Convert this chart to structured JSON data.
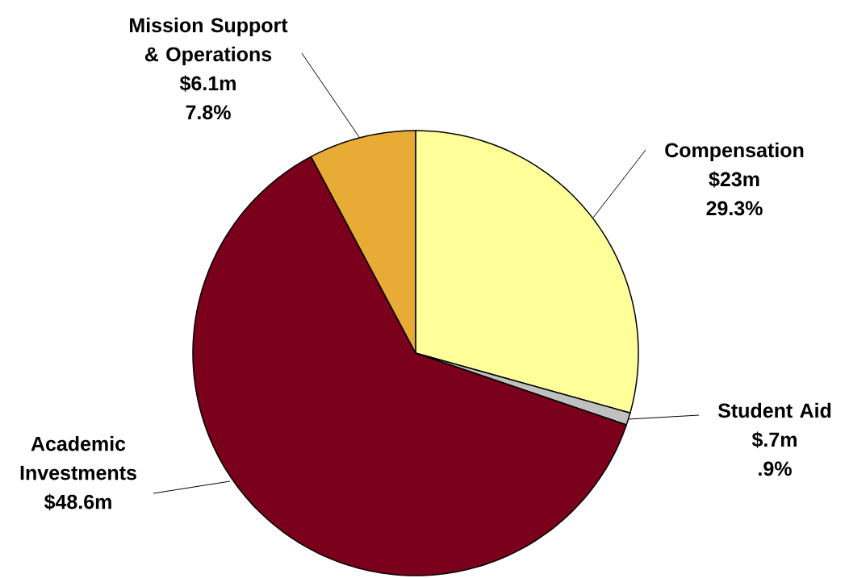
{
  "chart_data": {
    "type": "pie",
    "categories": [
      "Compensation",
      "Student Aid",
      "Academic Investments",
      "Mission Support & Operations"
    ],
    "values": [
      23,
      0.7,
      48.6,
      6.1
    ],
    "value_labels": [
      "$23m",
      "$.7m",
      "$48.6m",
      "$6.1m"
    ],
    "annotations": [
      {
        "text": "29.3%",
        "x": "Compensation"
      },
      {
        "text": ".9%",
        "x": "Student Aid"
      },
      {
        "text": "7.8%",
        "x": "Mission Support & Operations"
      }
    ],
    "colors": [
      "#ffff99",
      "#c0c0c0",
      "#7b001c",
      "#e8ab35"
    ],
    "legend": false
  }
}
